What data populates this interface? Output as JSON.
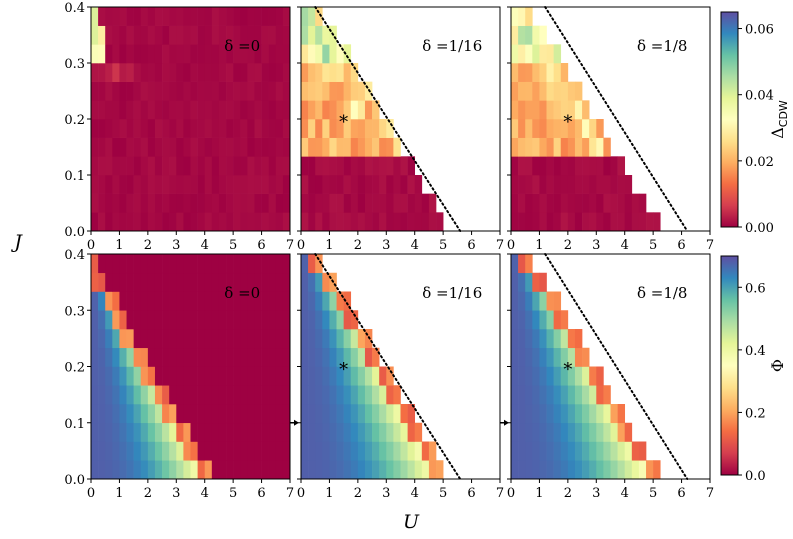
{
  "figure": {
    "shared_xlabel": "U",
    "shared_ylabel": "J",
    "x_ticks": [
      "0",
      "1",
      "2",
      "3",
      "4",
      "5",
      "6",
      "7"
    ],
    "y_ticks": [
      "0.0",
      "0.1",
      "0.2",
      "0.3",
      "0.4"
    ],
    "star_marker": "*",
    "colormap": "Spectral"
  },
  "colorbars": [
    {
      "label": "Δ_CDW",
      "label_base": "Δ",
      "label_sub": "CDW",
      "range": [
        0,
        0.065
      ],
      "ticks": [
        "0.00",
        "0.02",
        "0.04",
        "0.06"
      ],
      "tick_values": [
        0,
        0.02,
        0.04,
        0.06
      ]
    },
    {
      "label": "Φ",
      "range": [
        0,
        0.7
      ],
      "ticks": [
        "0.0",
        "0.2",
        "0.4",
        "0.6"
      ],
      "tick_values": [
        0,
        0.2,
        0.4,
        0.6
      ]
    }
  ],
  "chart_data": [
    {
      "type": "heatmap",
      "row": "top",
      "quantity": "Δ_CDW",
      "panel_label": "δ =0",
      "doping": "0",
      "xlim": [
        0,
        7
      ],
      "ylim": [
        0,
        0.4
      ],
      "xlabel": "U",
      "ylabel": "J",
      "u_edge": null,
      "star": null,
      "arrow": false,
      "boundary_line": null
    },
    {
      "type": "heatmap",
      "row": "top",
      "quantity": "Δ_CDW",
      "panel_label": "δ =1/16",
      "doping": "1/16",
      "xlim": [
        0,
        7
      ],
      "ylim": [
        0,
        0.4
      ],
      "xlabel": "U",
      "ylabel": "J",
      "u_edge": [
        [
          0,
          5.25
        ],
        [
          0.38,
          0.9
        ]
      ],
      "star": [
        1.5,
        0.2
      ],
      "arrow": false,
      "boundary_line": [
        [
          0.5,
          0.4
        ],
        [
          5.6,
          0
        ]
      ]
    },
    {
      "type": "heatmap",
      "row": "top",
      "quantity": "Δ_CDW",
      "panel_label": "δ =1/8",
      "doping": "1/8",
      "xlim": [
        0,
        7
      ],
      "ylim": [
        0,
        0.4
      ],
      "xlabel": "U",
      "ylabel": "J",
      "u_edge": [
        [
          0,
          5.35
        ],
        [
          0.38,
          0.9
        ]
      ],
      "star": [
        2.0,
        0.2
      ],
      "arrow": false,
      "boundary_line": [
        [
          1.2,
          0.4
        ],
        [
          6.2,
          0
        ]
      ]
    },
    {
      "type": "heatmap",
      "row": "bottom",
      "quantity": "Φ",
      "panel_label": "δ =0",
      "doping": "0",
      "xlim": [
        0,
        7
      ],
      "ylim": [
        0,
        0.4
      ],
      "xlabel": "U",
      "ylabel": "J",
      "u_edge": [
        [
          0,
          4.35
        ],
        [
          0.38,
          0.2
        ]
      ],
      "star": null,
      "arrow": false,
      "boundary_line": null
    },
    {
      "type": "heatmap",
      "row": "bottom",
      "quantity": "Φ",
      "panel_label": "δ =1/16",
      "doping": "1/16",
      "xlim": [
        0,
        7
      ],
      "ylim": [
        0,
        0.4
      ],
      "xlabel": "U",
      "ylabel": "J",
      "u_edge": [
        [
          0,
          5.25
        ],
        [
          0.38,
          0.9
        ]
      ],
      "star": [
        1.5,
        0.2
      ],
      "arrow": true,
      "boundary_line": [
        [
          0.5,
          0.4
        ],
        [
          5.6,
          0
        ]
      ]
    },
    {
      "type": "heatmap",
      "row": "bottom",
      "quantity": "Φ",
      "panel_label": "δ =1/8",
      "doping": "1/8",
      "xlim": [
        0,
        7
      ],
      "ylim": [
        0,
        0.4
      ],
      "xlabel": "U",
      "ylabel": "J",
      "u_edge": [
        [
          0,
          5.35
        ],
        [
          0.38,
          0.9
        ]
      ],
      "star": [
        2.0,
        0.2
      ],
      "arrow": true,
      "boundary_line": [
        [
          1.2,
          0.4
        ],
        [
          6.2,
          0
        ]
      ]
    }
  ]
}
